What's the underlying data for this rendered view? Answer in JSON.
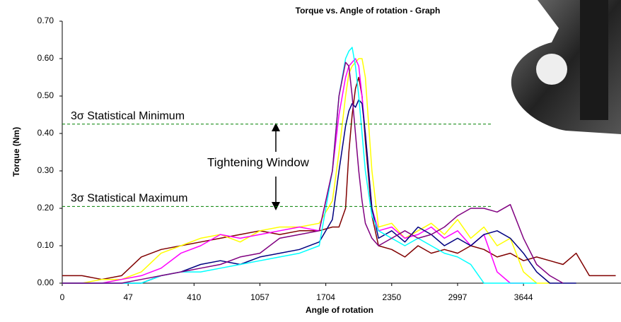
{
  "chart_data": {
    "type": "line",
    "title": "Torque vs. Angle of rotation - Graph",
    "x_label": "Angle of rotation",
    "y_label": "Torque (Nm)",
    "xlim": [
      0,
      8.48
    ],
    "ylim": [
      0,
      0.7
    ],
    "xticks": [
      0,
      {
        "value": 1,
        "label": "47"
      },
      {
        "value": 2,
        "label": "410"
      },
      {
        "value": 3,
        "label": "1057"
      },
      {
        "value": 4,
        "label": "1704"
      },
      {
        "value": 5,
        "label": "2350"
      },
      {
        "value": 6,
        "label": "2997"
      },
      {
        "value": 7,
        "label": "3644"
      }
    ],
    "yticks": [
      {
        "value": 0,
        "label": "0.00"
      },
      {
        "value": 0.1,
        "label": "0.10"
      },
      {
        "value": 0.2,
        "label": "0.20"
      },
      {
        "value": 0.3,
        "label": "0.30"
      },
      {
        "value": 0.4,
        "label": "0.40"
      },
      {
        "value": 0.5,
        "label": "0.50"
      },
      {
        "value": 0.6,
        "label": "0.60"
      },
      {
        "value": 0.7,
        "label": "0.70"
      }
    ],
    "x": [
      0,
      0.3,
      0.6,
      0.9,
      1.2,
      1.5,
      1.8,
      2.1,
      2.4,
      2.7,
      3.0,
      3.3,
      3.6,
      3.9,
      4.1,
      4.2,
      4.3,
      4.35,
      4.4,
      4.45,
      4.5,
      4.55,
      4.6,
      4.7,
      4.8,
      5.0,
      5.2,
      5.4,
      5.6,
      5.8,
      6.0,
      6.2,
      6.4,
      6.6,
      6.8,
      7.0,
      7.2,
      7.4,
      7.6,
      7.8,
      8.0,
      8.2,
      8.4
    ],
    "series": [
      {
        "color": "#800000",
        "values": [
          0.02,
          0.02,
          0.01,
          0.02,
          0.07,
          0.09,
          0.1,
          0.11,
          0.12,
          0.13,
          0.14,
          0.13,
          0.14,
          0.14,
          0.15,
          0.15,
          0.2,
          0.35,
          0.45,
          0.52,
          0.55,
          0.5,
          0.38,
          0.18,
          0.1,
          0.09,
          0.07,
          0.1,
          0.08,
          0.09,
          0.08,
          0.1,
          0.09,
          0.07,
          0.08,
          0.06,
          0.07,
          0.06,
          0.05,
          0.08,
          0.02,
          0.02,
          0.02
        ]
      },
      {
        "color": "#ffff00",
        "values": [
          0,
          0,
          0.01,
          0.01,
          0.03,
          0.08,
          0.1,
          0.12,
          0.13,
          0.11,
          0.14,
          0.15,
          0.15,
          0.16,
          0.22,
          0.35,
          0.5,
          0.56,
          0.58,
          0.59,
          0.6,
          0.6,
          0.55,
          0.3,
          0.15,
          0.16,
          0.12,
          0.14,
          0.16,
          0.13,
          0.17,
          0.12,
          0.15,
          0.1,
          0.12,
          0.03,
          0,
          0,
          null,
          null,
          null,
          null,
          null
        ]
      },
      {
        "color": "#ff00ff",
        "values": [
          0,
          0,
          0,
          0.01,
          0.02,
          0.04,
          0.08,
          0.1,
          0.13,
          0.12,
          0.13,
          0.14,
          0.15,
          0.14,
          0.3,
          0.45,
          0.55,
          0.58,
          0.59,
          0.6,
          0.58,
          0.5,
          0.4,
          0.2,
          0.14,
          0.15,
          0.12,
          0.13,
          0.15,
          0.12,
          0.14,
          0.1,
          0.13,
          0.03,
          0,
          0,
          null,
          null,
          null,
          null,
          null,
          null,
          null
        ]
      },
      {
        "color": "#000080",
        "values": [
          0,
          0,
          0,
          0,
          0,
          0.02,
          0.03,
          0.05,
          0.06,
          0.05,
          0.07,
          0.08,
          0.09,
          0.11,
          0.17,
          0.3,
          0.42,
          0.46,
          0.48,
          0.47,
          0.49,
          0.48,
          0.4,
          0.2,
          0.12,
          0.14,
          0.11,
          0.15,
          0.13,
          0.1,
          0.12,
          0.1,
          0.13,
          0.14,
          0.12,
          0.08,
          0.03,
          0,
          0,
          0,
          null,
          null,
          null
        ]
      },
      {
        "color": "#00ffff",
        "values": [
          0,
          0,
          0,
          0,
          0,
          0.02,
          0.03,
          0.03,
          0.04,
          0.05,
          0.06,
          0.07,
          0.08,
          0.1,
          0.3,
          0.5,
          0.6,
          0.62,
          0.63,
          0.58,
          0.5,
          0.4,
          0.3,
          0.18,
          0.14,
          0.12,
          0.1,
          0.12,
          0.1,
          0.08,
          0.07,
          0.05,
          0,
          0,
          0,
          0,
          0,
          null,
          null,
          null,
          null,
          null,
          null
        ]
      },
      {
        "color": "#800080",
        "values": [
          0,
          0,
          0,
          0,
          0.01,
          0.02,
          0.03,
          0.04,
          0.05,
          0.07,
          0.08,
          0.12,
          0.13,
          0.14,
          0.3,
          0.5,
          0.59,
          0.58,
          0.5,
          0.4,
          0.3,
          0.22,
          0.16,
          0.12,
          0.1,
          0.12,
          0.14,
          0.12,
          0.13,
          0.15,
          0.18,
          0.2,
          0.2,
          0.19,
          0.21,
          0.12,
          0.05,
          0.02,
          0,
          null,
          null,
          null,
          null
        ]
      }
    ],
    "reference_lines": [
      {
        "label": "3σ Statistical Minimum",
        "value": 0.425,
        "color": "#008000"
      },
      {
        "label": "3σ Statistical Maximum",
        "value": 0.205,
        "color": "#008000"
      }
    ],
    "annotation": "Tightening Window"
  }
}
